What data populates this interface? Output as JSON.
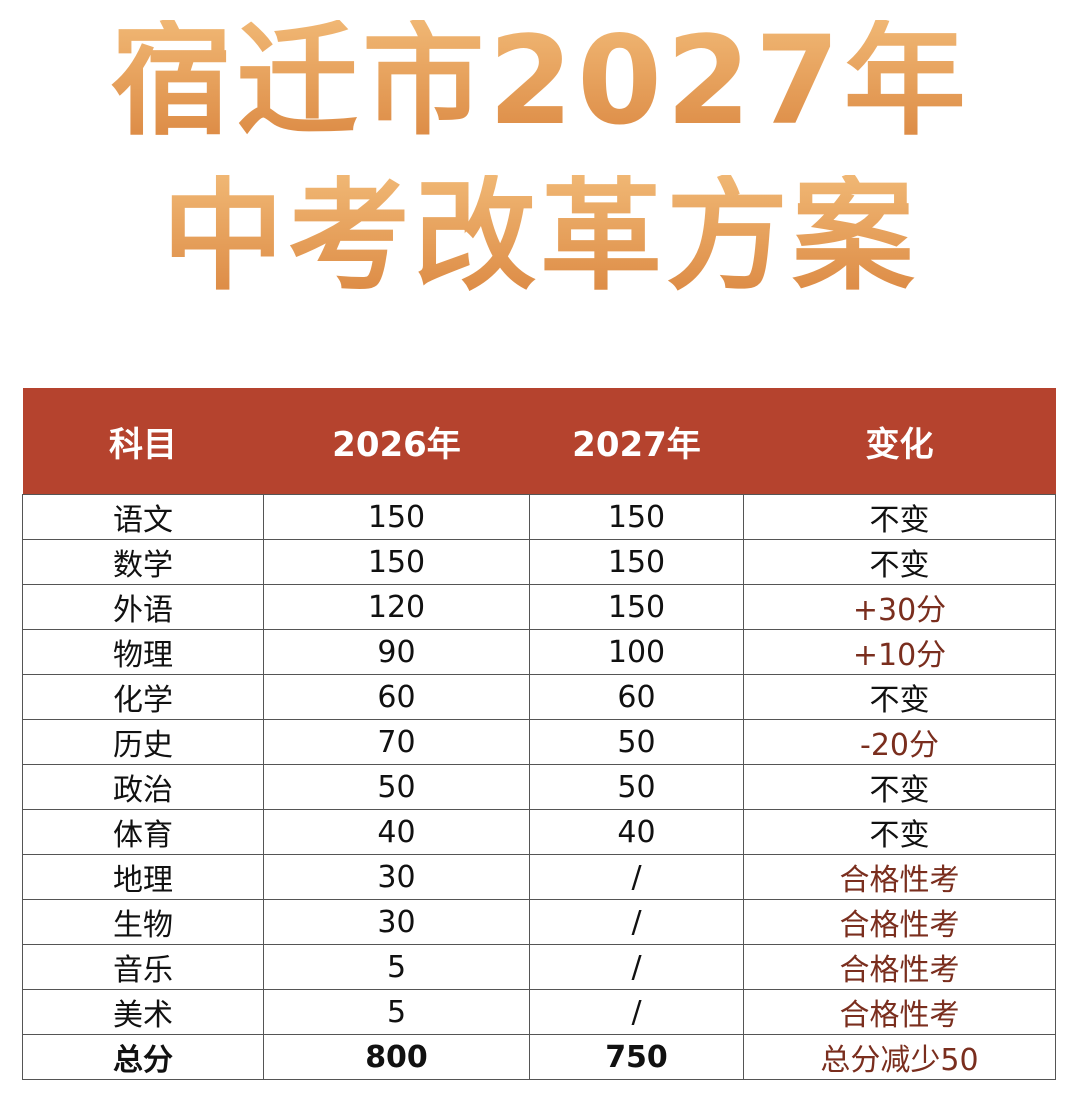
{
  "header": {
    "title_line1": "宿迁市2027年",
    "title_line2": "中考改革方案"
  },
  "table": {
    "columns": [
      "科目",
      "2026年",
      "2027年",
      "变化"
    ],
    "rows": [
      [
        "语文",
        "150",
        "150",
        "不变"
      ],
      [
        "数学",
        "150",
        "150",
        "不变"
      ],
      [
        "外语",
        "120",
        "150",
        "+30分"
      ],
      [
        "物理",
        "90",
        "100",
        "+10分"
      ],
      [
        "化学",
        "60",
        "60",
        "不变"
      ],
      [
        "历史",
        "70",
        "50",
        "-20分"
      ],
      [
        "政治",
        "50",
        "50",
        "不变"
      ],
      [
        "体育",
        "40",
        "40",
        "不变"
      ],
      [
        "地理",
        "30",
        "/",
        "合格性考"
      ],
      [
        "生物",
        "30",
        "/",
        "合格性考"
      ],
      [
        "音乐",
        "5",
        "/",
        "合格性考"
      ],
      [
        "美术",
        "5",
        "/",
        "合格性考"
      ],
      [
        "总分",
        "800",
        "750",
        "总分减少50"
      ]
    ]
  }
}
